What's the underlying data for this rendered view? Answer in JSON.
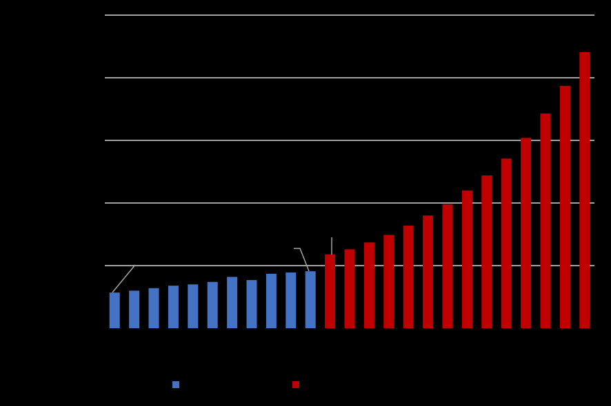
{
  "chart_data": {
    "type": "bar",
    "categories": [
      null,
      null,
      null,
      null,
      null,
      null,
      null,
      null,
      null,
      null,
      null,
      null,
      null,
      null,
      null,
      null,
      null,
      null,
      null,
      null,
      null,
      null,
      null,
      null,
      null
    ],
    "series": [
      {
        "color": "#4472c4",
        "values": [
          0.57,
          0.6,
          0.64,
          0.68,
          0.7,
          0.74,
          0.82,
          0.77,
          0.87,
          0.89,
          0.91,
          null,
          null,
          null,
          null,
          null,
          null,
          null,
          null,
          null,
          null,
          null,
          null,
          null,
          null
        ]
      },
      {
        "color": "#c00000",
        "values": [
          null,
          null,
          null,
          null,
          null,
          null,
          null,
          null,
          null,
          null,
          null,
          1.18,
          1.26,
          1.37,
          1.49,
          1.64,
          1.8,
          1.98,
          2.2,
          2.44,
          2.71,
          3.04,
          3.43,
          3.87,
          4.41
        ]
      }
    ],
    "ylim": [
      0,
      5
    ],
    "yticks": [
      1,
      2,
      3,
      4,
      5
    ],
    "grid": true
  }
}
